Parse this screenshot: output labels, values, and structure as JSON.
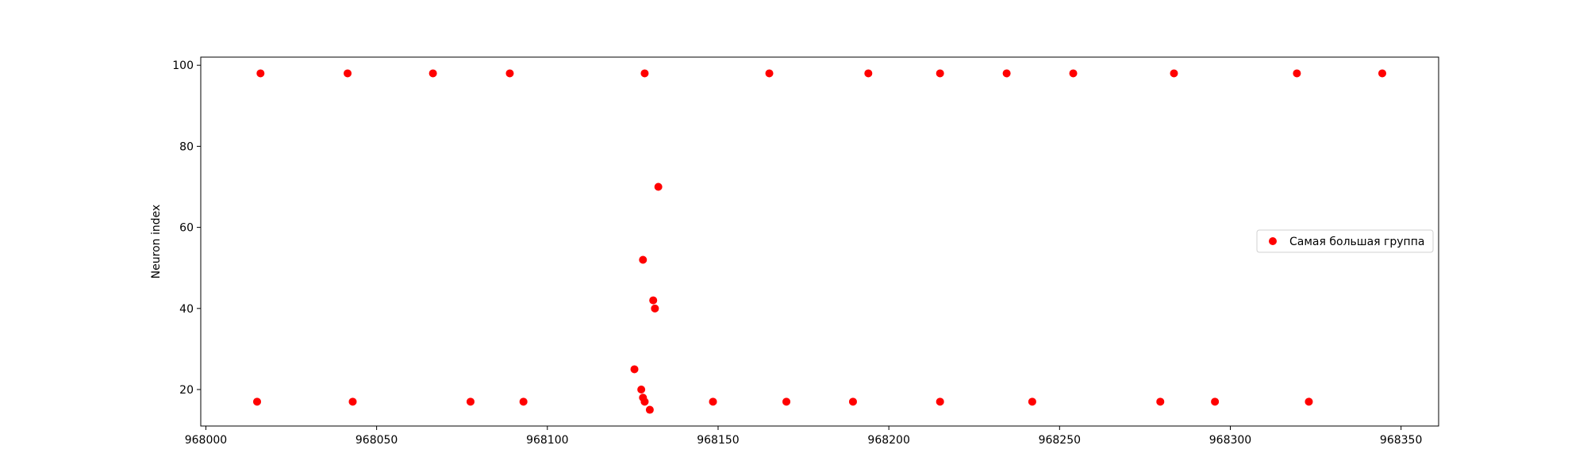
{
  "chart_data": {
    "type": "scatter",
    "title": "",
    "xlabel": "",
    "ylabel": "Neuron index",
    "xlim": [
      967998.5,
      968361
    ],
    "ylim": [
      11,
      102
    ],
    "xticks": [
      968000,
      968050,
      968100,
      968150,
      968200,
      968250,
      968300,
      968350
    ],
    "xtick_labels": [
      "968000",
      "968050",
      "968100",
      "968150",
      "968200",
      "968250",
      "968300",
      "968350"
    ],
    "yticks": [
      20,
      40,
      60,
      80,
      100
    ],
    "ytick_labels": [
      "20",
      "40",
      "60",
      "80",
      "100"
    ],
    "grid": false,
    "legend": {
      "position": "center-right"
    },
    "series": [
      {
        "name": "Самая большая группа",
        "color": "#ff0000",
        "marker": "circle",
        "points": [
          [
            968016,
            98
          ],
          [
            968041.5,
            98
          ],
          [
            968066.5,
            98
          ],
          [
            968089,
            98
          ],
          [
            968128.5,
            98
          ],
          [
            968165,
            98
          ],
          [
            968194,
            98
          ],
          [
            968215,
            98
          ],
          [
            968234.5,
            98
          ],
          [
            968254,
            98
          ],
          [
            968283.5,
            98
          ],
          [
            968319.5,
            98
          ],
          [
            968344.5,
            98
          ],
          [
            968015,
            17
          ],
          [
            968043,
            17
          ],
          [
            968077.5,
            17
          ],
          [
            968093,
            17
          ],
          [
            968148.5,
            17
          ],
          [
            968170,
            17
          ],
          [
            968189.5,
            17
          ],
          [
            968215,
            17
          ],
          [
            968242,
            17
          ],
          [
            968279.5,
            17
          ],
          [
            968295.5,
            17
          ],
          [
            968323,
            17
          ],
          [
            968132.5,
            70
          ],
          [
            968128,
            52
          ],
          [
            968131,
            42
          ],
          [
            968131.5,
            40
          ],
          [
            968125.5,
            25
          ],
          [
            968127.5,
            20
          ],
          [
            968128,
            18
          ],
          [
            968128.5,
            17
          ],
          [
            968130,
            15
          ]
        ]
      }
    ]
  }
}
